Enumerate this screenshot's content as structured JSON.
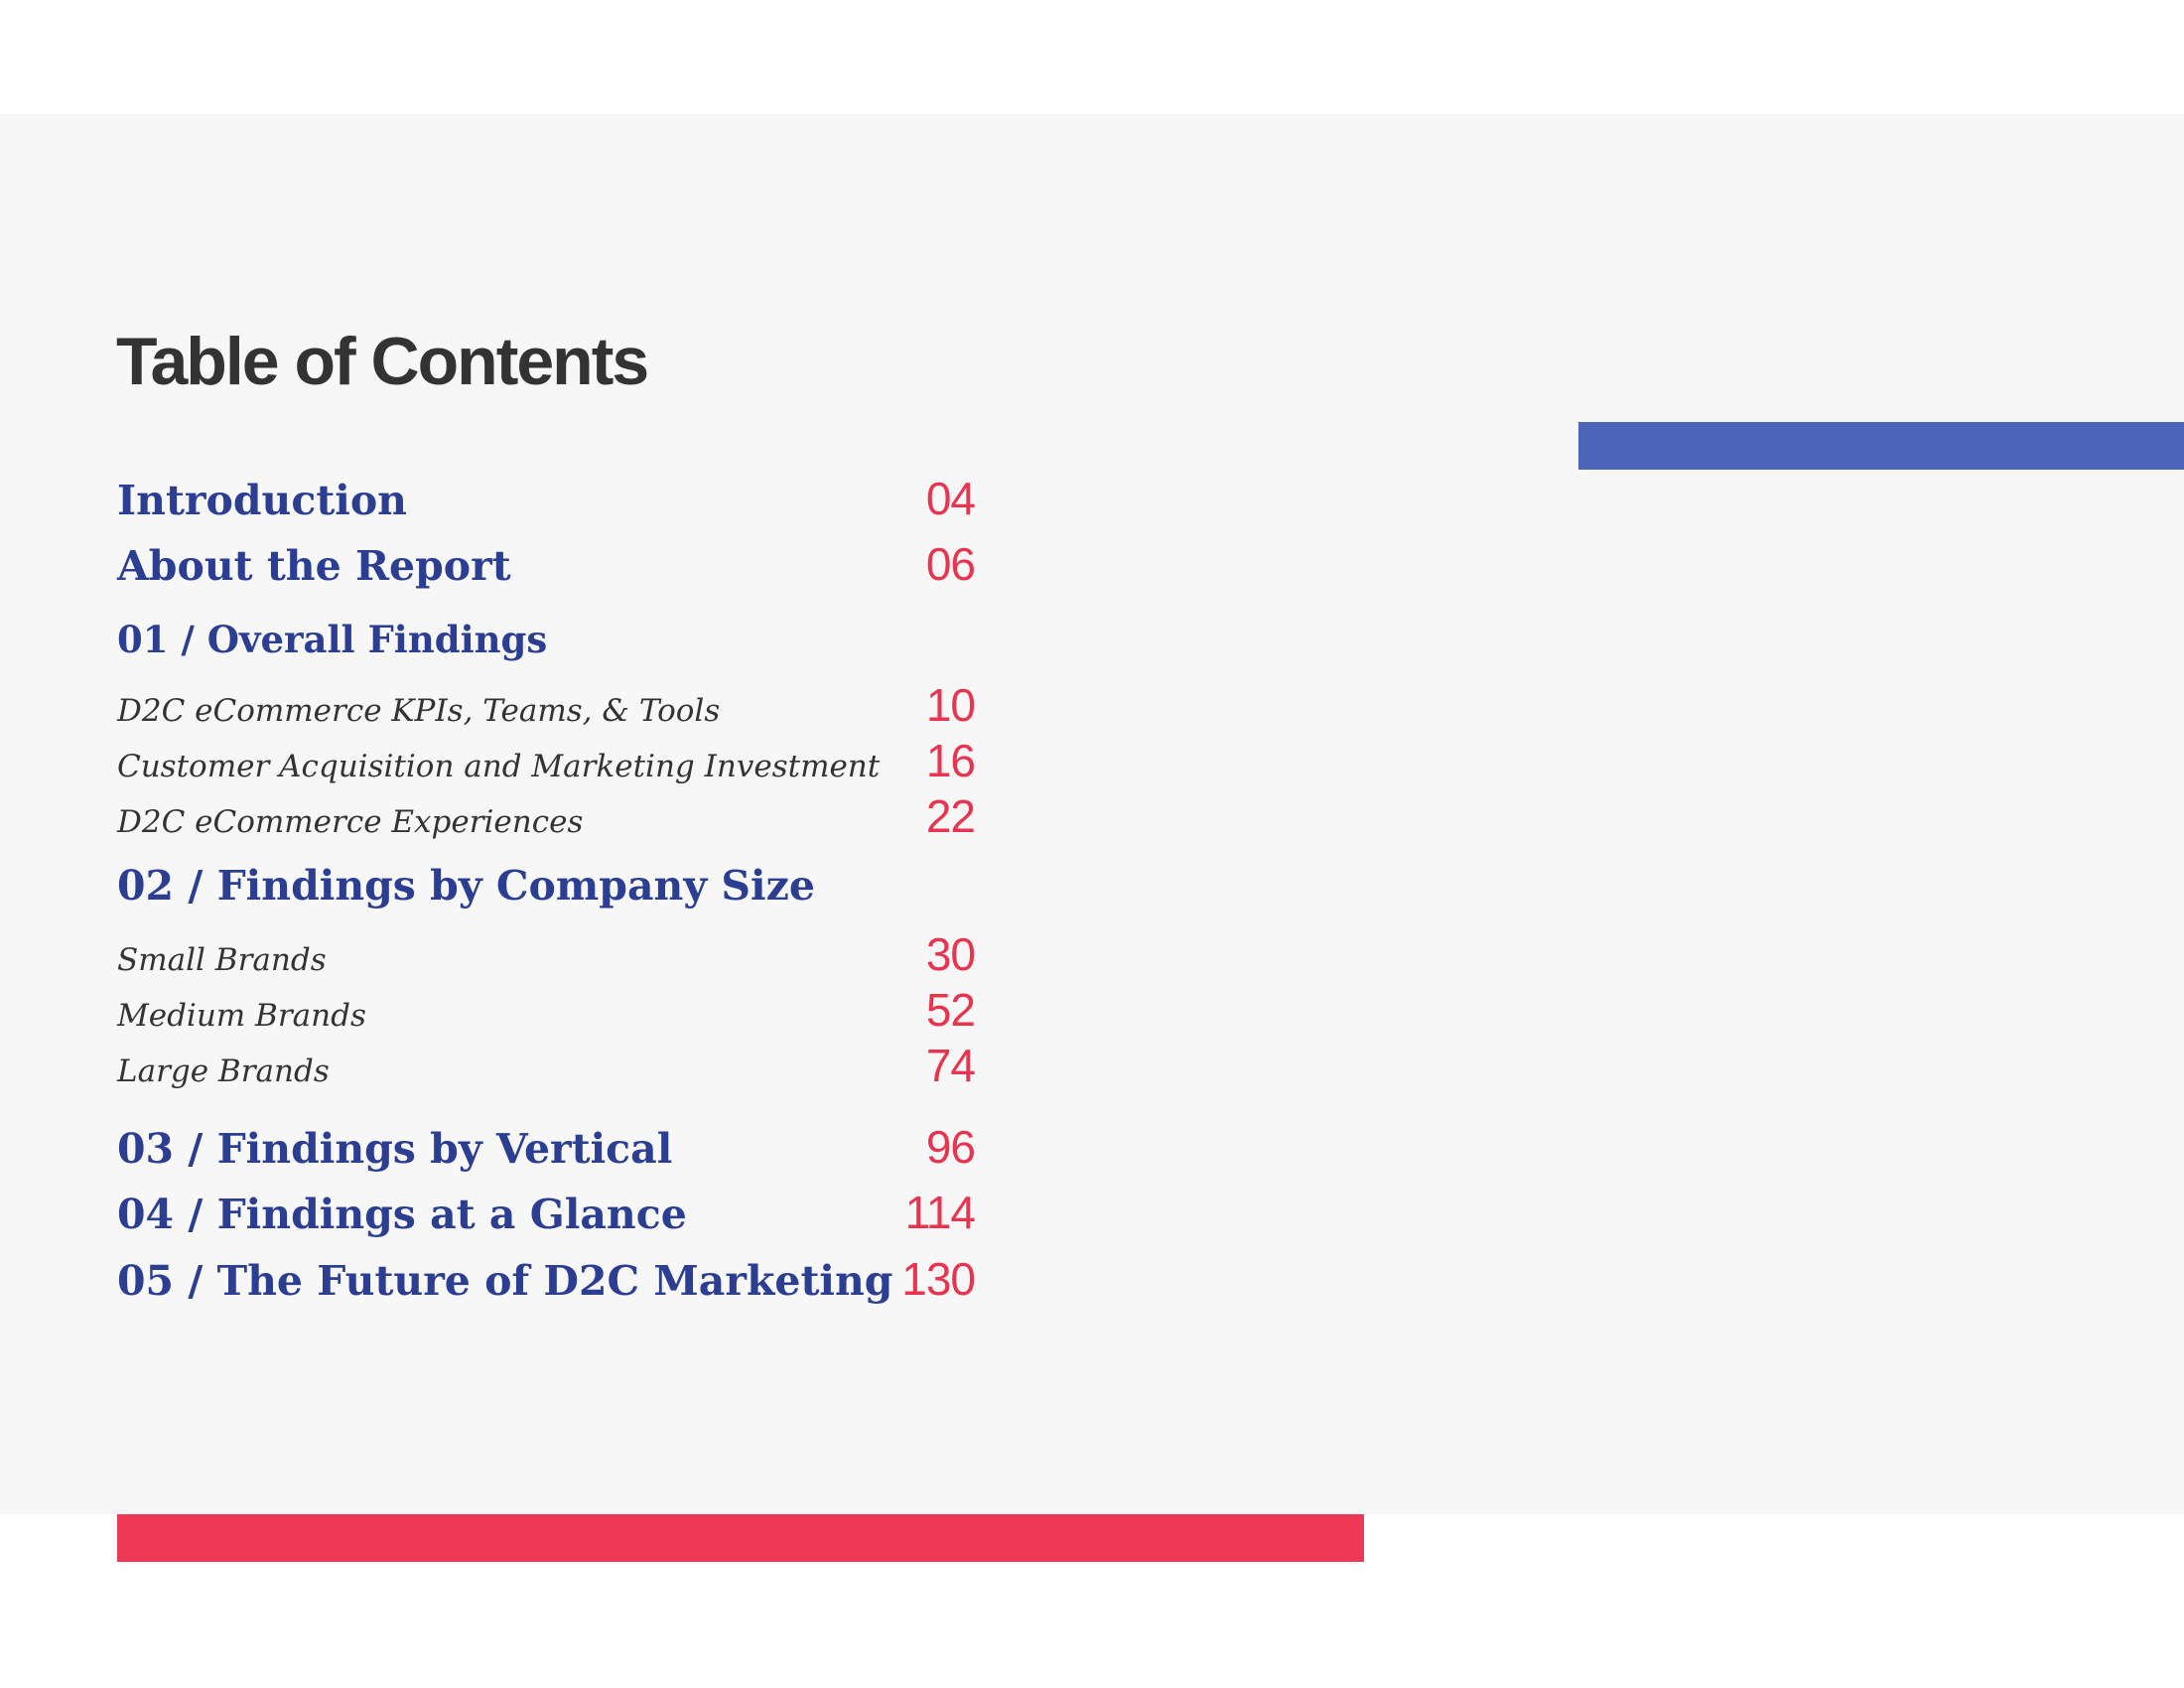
{
  "page_title": "Table of Contents",
  "toc": {
    "introduction": {
      "label": "Introduction",
      "page": "04"
    },
    "about": {
      "label": "About the Report",
      "page": "06"
    },
    "section1": {
      "label": "01 / Overall Findings",
      "items": [
        {
          "label": "D2C eCommerce KPIs, Teams, & Tools",
          "page": "10"
        },
        {
          "label": "Customer Acquisition and Marketing Investment",
          "page": "16"
        },
        {
          "label": "D2C eCommerce Experiences",
          "page": "22"
        }
      ]
    },
    "section2": {
      "label": "02 / Findings by Company Size",
      "items": [
        {
          "label": "Small Brands",
          "page": "30"
        },
        {
          "label": "Medium Brands",
          "page": "52"
        },
        {
          "label": "Large Brands",
          "page": "74"
        }
      ]
    },
    "section3": {
      "label": "03 / Findings by Vertical",
      "page": "96"
    },
    "section4": {
      "label": "04 / Findings at a Glance",
      "page": "114"
    },
    "section5": {
      "label": "05 / The Future of D2C Marketing",
      "page": "130"
    }
  },
  "colors": {
    "panel": "#f7f7f7",
    "heading_blue": "#2c3e91",
    "page_number_red": "#e8344f",
    "accent_blue_bar": "#4b65b9",
    "accent_red_bar": "#ee3856"
  }
}
